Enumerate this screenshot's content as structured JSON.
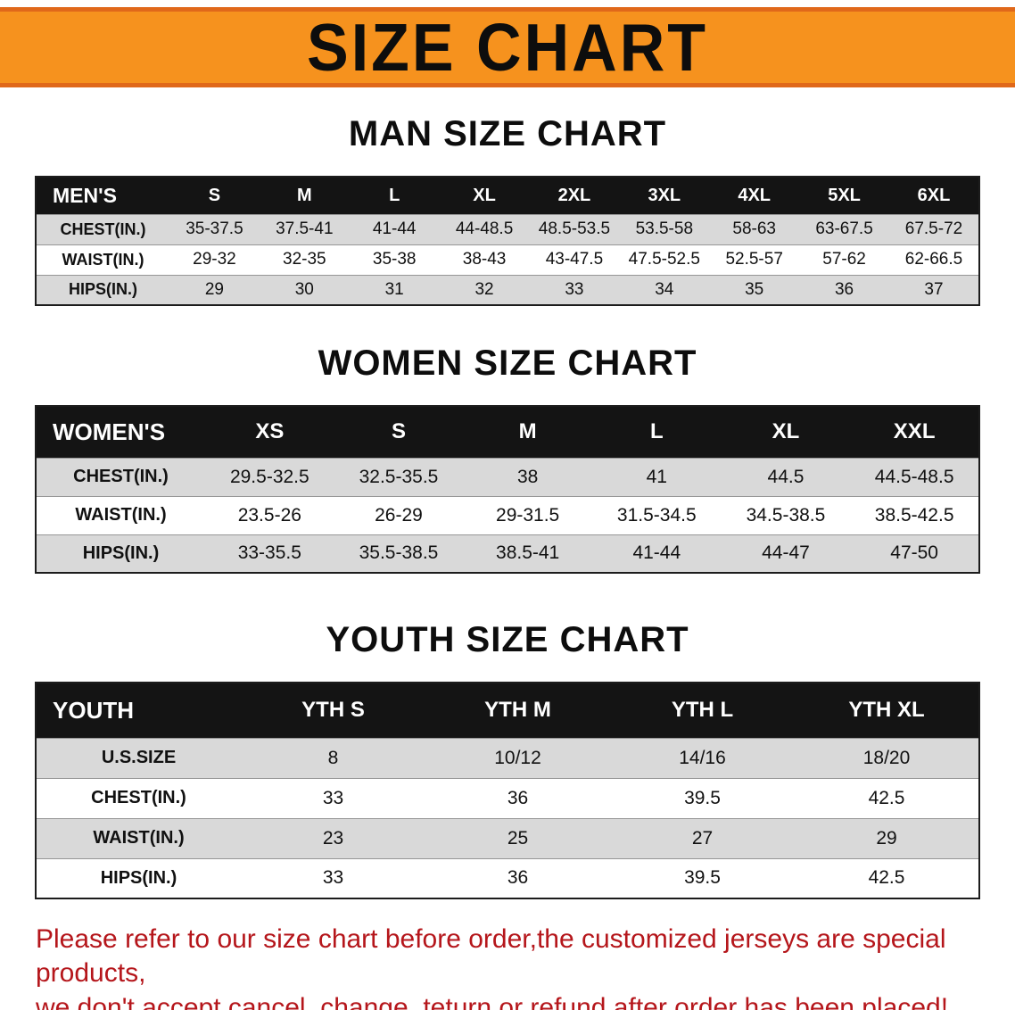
{
  "banner": {
    "title": "SIZE CHART",
    "bg_color": "#f6921e",
    "edge_color": "#e0681a"
  },
  "men": {
    "heading": "MAN SIZE CHART",
    "header": [
      "MEN'S",
      "S",
      "M",
      "L",
      "XL",
      "2XL",
      "3XL",
      "4XL",
      "5XL",
      "6XL"
    ],
    "rows": [
      {
        "label": "CHEST(IN.)",
        "values": [
          "35-37.5",
          "37.5-41",
          "41-44",
          "44-48.5",
          "48.5-53.5",
          "53.5-58",
          "58-63",
          "63-67.5",
          "67.5-72"
        ]
      },
      {
        "label": "WAIST(IN.)",
        "values": [
          "29-32",
          "32-35",
          "35-38",
          "38-43",
          "43-47.5",
          "47.5-52.5",
          "52.5-57",
          "57-62",
          "62-66.5"
        ]
      },
      {
        "label": "HIPS(IN.)",
        "values": [
          "29",
          "30",
          "31",
          "32",
          "33",
          "34",
          "35",
          "36",
          "37"
        ]
      }
    ]
  },
  "women": {
    "heading": "WOMEN SIZE CHART",
    "header": [
      "WOMEN'S",
      "XS",
      "S",
      "M",
      "L",
      "XL",
      "XXL"
    ],
    "rows": [
      {
        "label": "CHEST(IN.)",
        "values": [
          "29.5-32.5",
          "32.5-35.5",
          "38",
          "41",
          "44.5",
          "44.5-48.5"
        ]
      },
      {
        "label": "WAIST(IN.)",
        "values": [
          "23.5-26",
          "26-29",
          "29-31.5",
          "31.5-34.5",
          "34.5-38.5",
          "38.5-42.5"
        ]
      },
      {
        "label": "HIPS(IN.)",
        "values": [
          "33-35.5",
          "35.5-38.5",
          "38.5-41",
          "41-44",
          "44-47",
          "47-50"
        ]
      }
    ]
  },
  "youth": {
    "heading": "YOUTH SIZE CHART",
    "header": [
      "YOUTH",
      "YTH S",
      "YTH M",
      "YTH L",
      "YTH XL"
    ],
    "rows": [
      {
        "label": "U.S.SIZE",
        "values": [
          "8",
          "10/12",
          "14/16",
          "18/20"
        ]
      },
      {
        "label": "CHEST(IN.)",
        "values": [
          "33",
          "36",
          "39.5",
          "42.5"
        ]
      },
      {
        "label": "WAIST(IN.)",
        "values": [
          "23",
          "25",
          "27",
          "29"
        ]
      },
      {
        "label": "HIPS(IN.)",
        "values": [
          "33",
          "36",
          "39.5",
          "42.5"
        ]
      }
    ]
  },
  "footer": {
    "line1": "Please refer to our size chart before order,the customized jerseys are special products,",
    "line2": "we don't accept cancel, change, teturn or refund after order has been placed!",
    "text_color": "#b5161b"
  }
}
